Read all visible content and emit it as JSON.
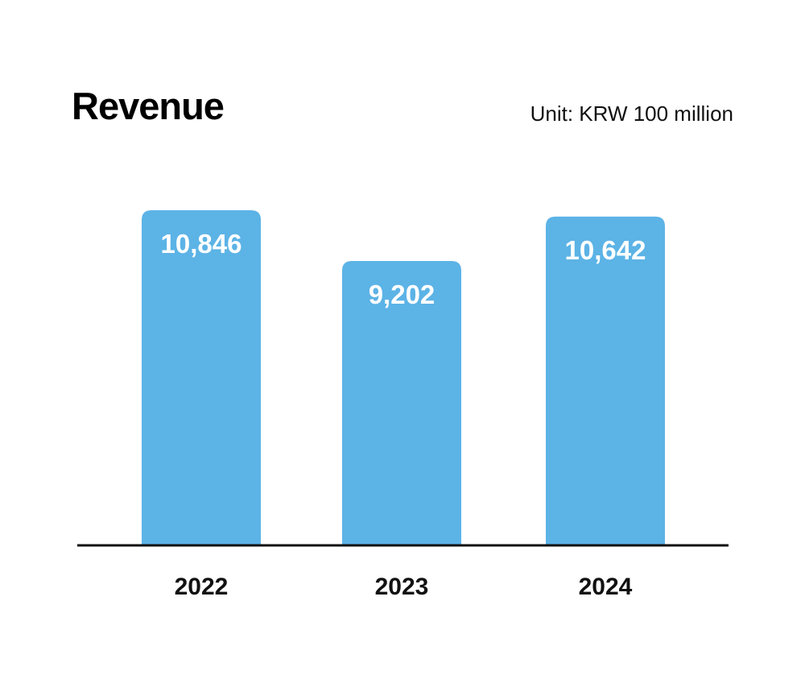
{
  "chart_data": {
    "type": "bar",
    "title": "Revenue",
    "unit_label": "Unit: KRW 100 million",
    "categories": [
      "2022",
      "2023",
      "2024"
    ],
    "series": [
      {
        "values": [
          10846,
          9202,
          10642
        ],
        "value_labels": [
          "10,846",
          "9,202",
          "10,642"
        ]
      }
    ],
    "ylim": [
      0,
      10846
    ],
    "grid": false,
    "legend": "none",
    "colors": {
      "bar": "#5cb3e6",
      "bar_label": "#ffffff",
      "axis": "#111111",
      "tick_label": "#111111"
    }
  }
}
